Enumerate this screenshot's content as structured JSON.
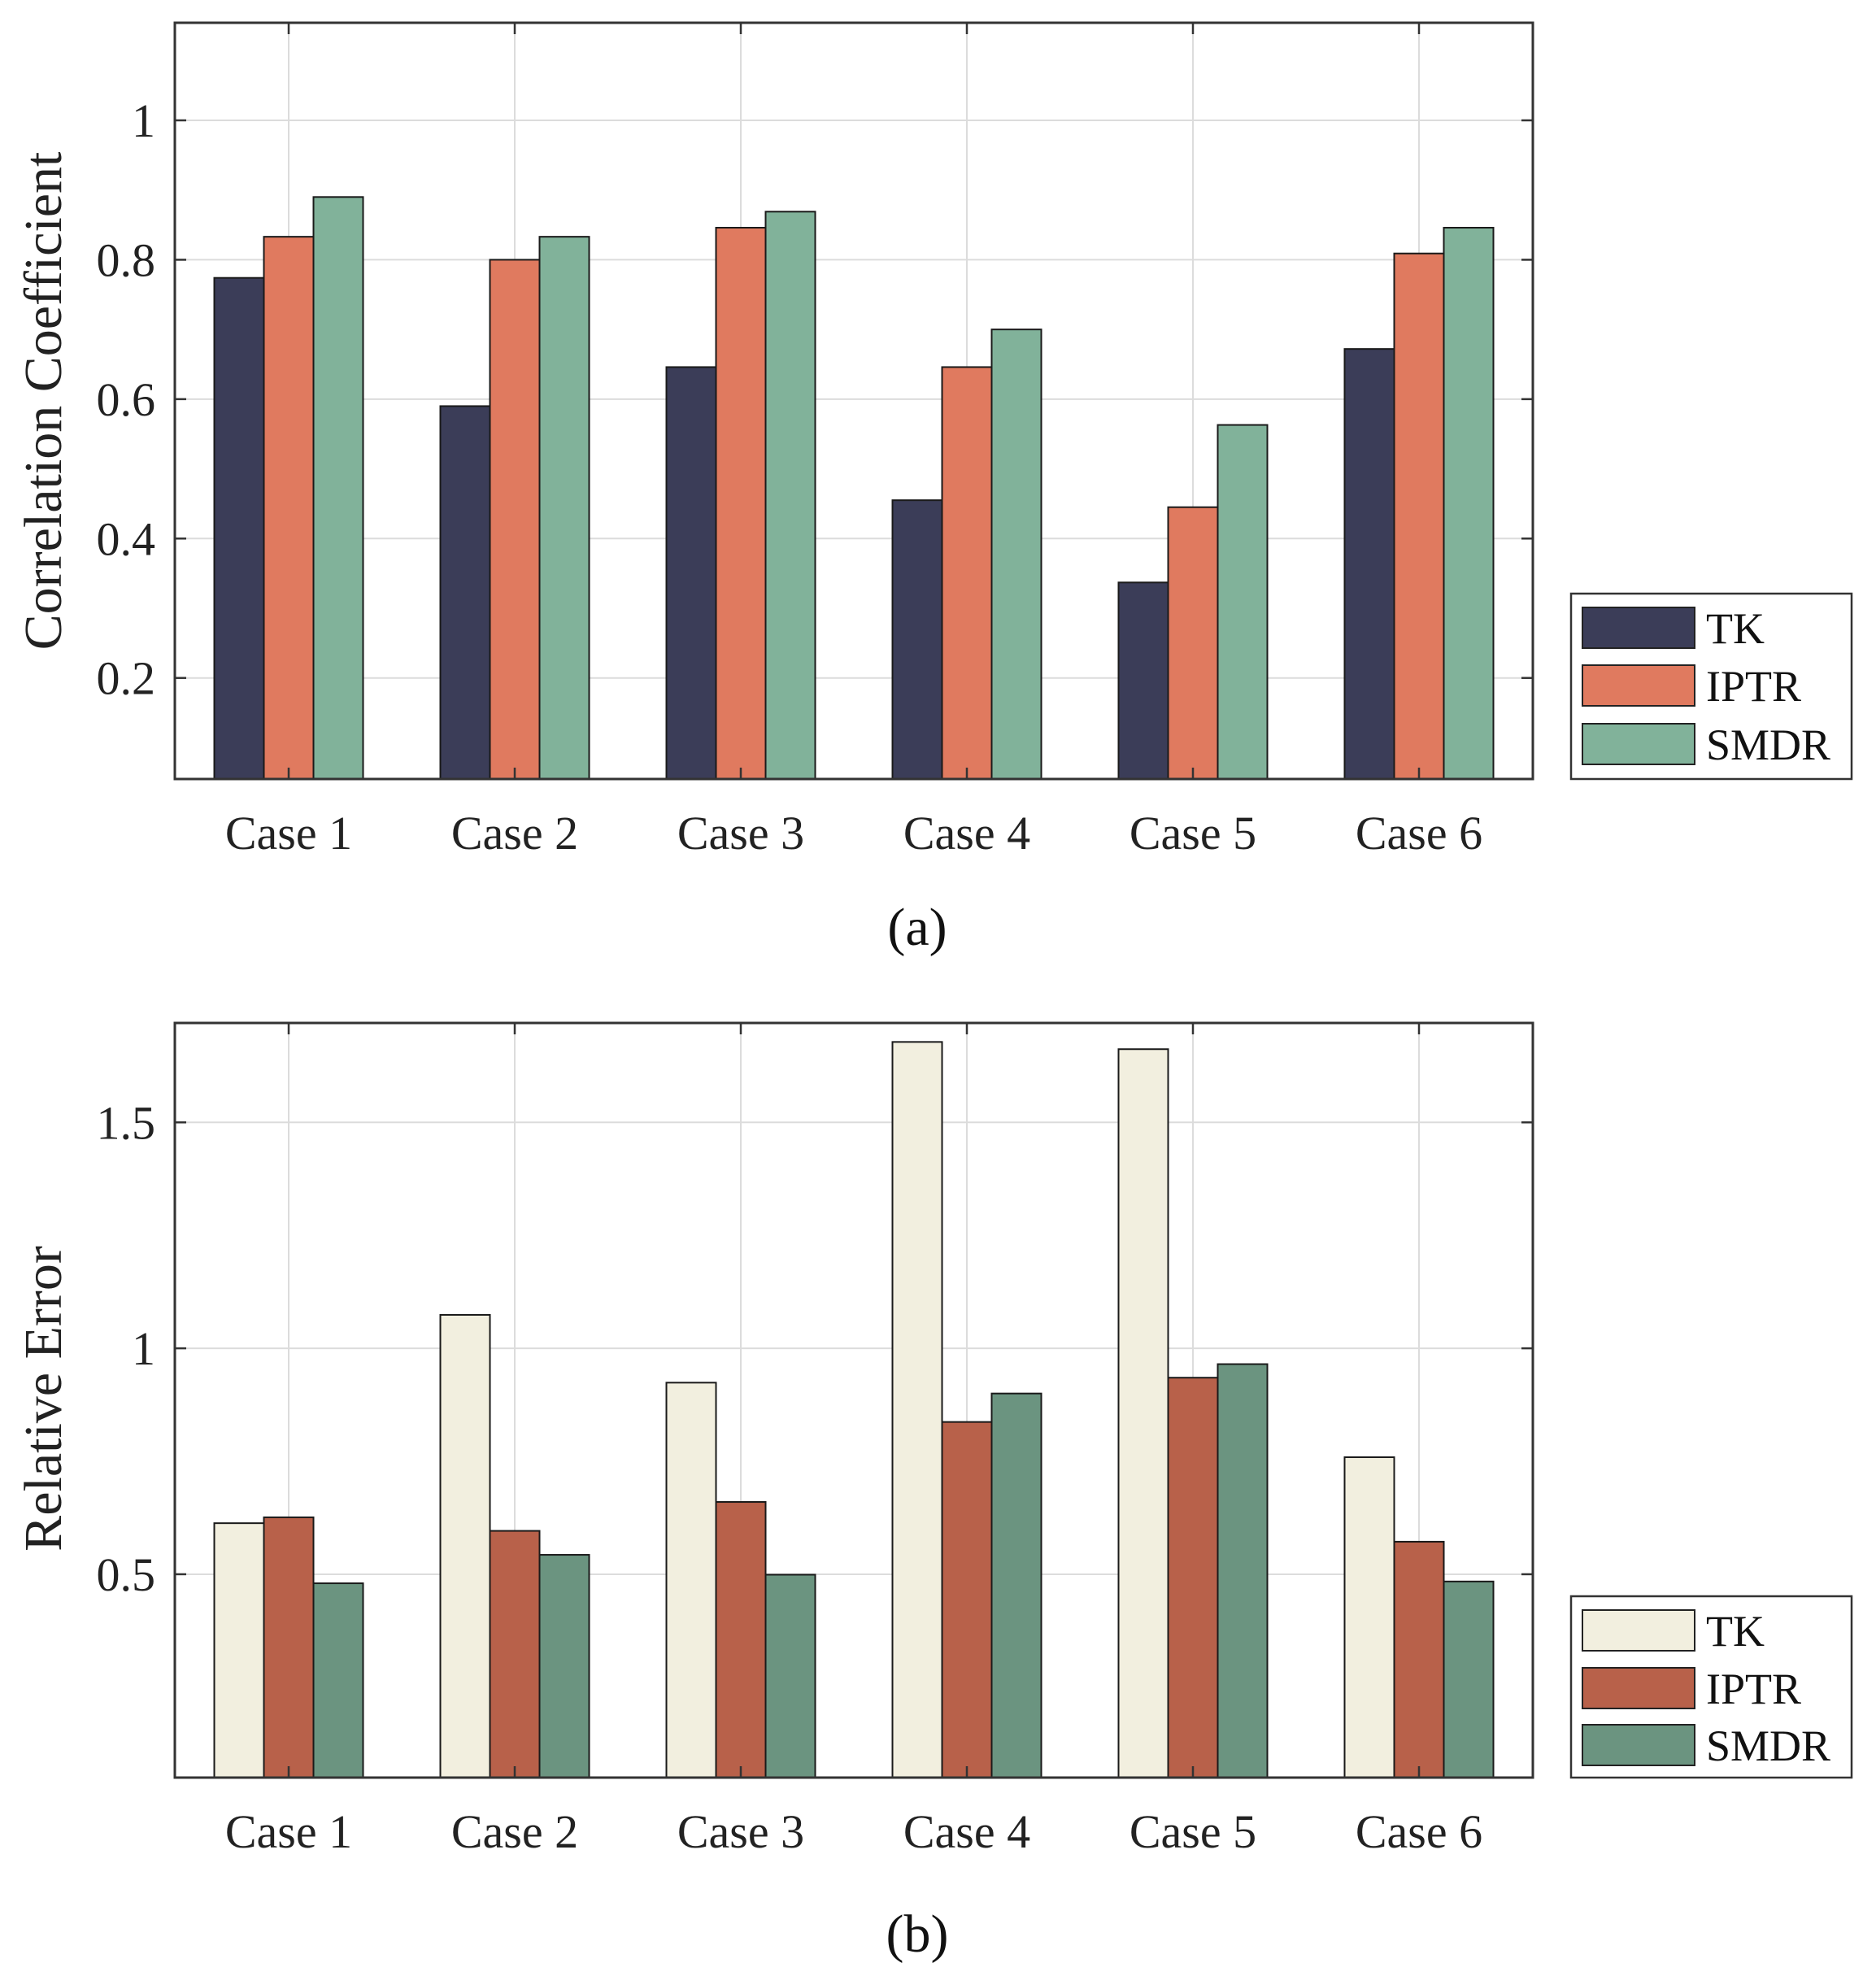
{
  "chart_data": [
    {
      "type": "bar",
      "panel": "top",
      "caption": "(a)",
      "title": "",
      "xlabel": "",
      "ylabel": "Correlation Coefficient",
      "categories": [
        "Case 1",
        "Case 2",
        "Case 3",
        "Case 4",
        "Case 5",
        "Case 6"
      ],
      "ylim": [
        0.055,
        1.14
      ],
      "yticks": [
        0.2,
        0.4,
        0.6,
        0.8,
        1
      ],
      "ytick_labels": [
        "0.2",
        "0.4",
        "0.6",
        "0.8",
        "1"
      ],
      "grid": true,
      "legend_position": "outside-right",
      "series": [
        {
          "name": "TK",
          "color": "#3b3d58",
          "values": [
            0.774,
            0.59,
            0.646,
            0.455,
            0.337,
            0.672
          ]
        },
        {
          "name": "IPTR",
          "color": "#e07a5f",
          "values": [
            0.833,
            0.8,
            0.846,
            0.646,
            0.445,
            0.809
          ]
        },
        {
          "name": "SMDR",
          "color": "#81b29a",
          "values": [
            0.89,
            0.833,
            0.869,
            0.7,
            0.563,
            0.846
          ]
        }
      ]
    },
    {
      "type": "bar",
      "panel": "bottom",
      "caption": "(b)",
      "title": "",
      "xlabel": "",
      "ylabel": "Relative Error",
      "categories": [
        "Case 1",
        "Case 2",
        "Case 3",
        "Case 4",
        "Case 5",
        "Case 6"
      ],
      "ylim": [
        0.05,
        1.72
      ],
      "yticks": [
        0.5,
        1,
        1.5
      ],
      "ytick_labels": [
        "0.5",
        "1",
        "1.5"
      ],
      "grid": true,
      "legend_position": "outside-right",
      "series": [
        {
          "name": "TK",
          "color": "#f2efdf",
          "values": [
            0.613,
            1.074,
            0.924,
            1.678,
            1.662,
            0.759
          ]
        },
        {
          "name": "IPTR",
          "color": "#b8614a",
          "values": [
            0.626,
            0.596,
            0.66,
            0.837,
            0.935,
            0.572
          ]
        },
        {
          "name": "SMDR",
          "color": "#6b9480",
          "values": [
            0.48,
            0.543,
            0.499,
            0.9,
            0.965,
            0.484
          ]
        }
      ]
    }
  ]
}
